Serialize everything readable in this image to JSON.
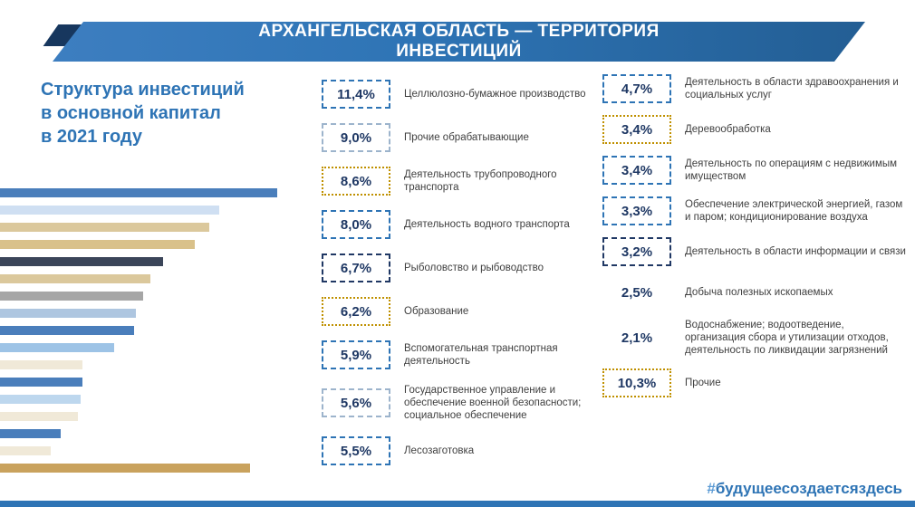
{
  "banner": {
    "line1": "АРХАНГЕЛЬСКАЯ ОБЛАСТЬ — ТЕРРИТОРИЯ",
    "line2": "ИНВЕСТИЦИЙ"
  },
  "heading": {
    "line1": "Структура инвестиций",
    "line2": "в основной капитал",
    "line3": "в 2021 году"
  },
  "hashtag": {
    "prefix": "#",
    "text": "будущеесоздаетсяздесь"
  },
  "colors": {
    "accent_blue": "#2e74b5",
    "banner_dark": "#17375e",
    "value_text": "#1f3864",
    "label_text": "#3f3f3f",
    "gold": "#bf9000",
    "footer_strip": "#2e74b5"
  },
  "left_column": [
    {
      "value": "11,4%",
      "label": "Целлюлозно-бумажное производство",
      "border": "blue"
    },
    {
      "value": "9,0%",
      "label": "Прочие обрабатывающие",
      "border": "gray"
    },
    {
      "value": "8,6%",
      "label": "Деятельность трубопроводного транспорта",
      "border": "gold"
    },
    {
      "value": "8,0%",
      "label": "Деятельность водного транспорта",
      "border": "blue"
    },
    {
      "value": "6,7%",
      "label": "Рыболовство и рыбоводство",
      "border": "dark"
    },
    {
      "value": "6,2%",
      "label": "Образование",
      "border": "gold"
    },
    {
      "value": "5,9%",
      "label": "Вспомогательная транспортная деятельность",
      "border": "blue"
    },
    {
      "value": "5,6%",
      "label": "Государственное управление и обеспечение военной безопасности; социальное обеспечение",
      "border": "gray"
    },
    {
      "value": "5,5%",
      "label": "Лесозаготовка",
      "border": "blue"
    }
  ],
  "right_column": [
    {
      "value": "4,7%",
      "label": "Деятельность в области здравоохранения и социальных услуг",
      "border": "blue"
    },
    {
      "value": "3,4%",
      "label": "Деревообработка",
      "border": "gold"
    },
    {
      "value": "3,4%",
      "label": "Деятельность по операциям с недвижимым имуществом",
      "border": "blue"
    },
    {
      "value": "3,3%",
      "label": "Обеспечение электрической энергией, газом и паром; кондиционирование воздуха",
      "border": "blue"
    },
    {
      "value": "3,2%",
      "label": "Деятельность в области информации и связи",
      "border": "dark"
    },
    {
      "value": "2,5%",
      "label": "Добыча полезных ископаемых",
      "border": "none"
    },
    {
      "value": "2,1%",
      "label": "Водоснабжение; водоотведение, организация сбора и утилизации отходов, деятельность по ликвидации загрязнений",
      "border": "none"
    },
    {
      "value": "10,3%",
      "label": "Прочие",
      "border": "gold"
    }
  ],
  "chart_data": {
    "type": "bar",
    "orientation": "horizontal",
    "title": "Структура инвестиций в основной капитал в 2021 году",
    "categories": [
      "Целлюлозно-бумажное производство",
      "Прочие обрабатывающие",
      "Деятельность трубопроводного транспорта",
      "Деятельность водного транспорта",
      "Рыболовство и рыбоводство",
      "Образование",
      "Вспомогательная транспортная деятельность",
      "Государственное управление и обеспечение военной безопасности; социальное обеспечение",
      "Лесозаготовка",
      "Деятельность в области здравоохранения и социальных услуг",
      "Деревообработка",
      "Деятельность по операциям с недвижимым имуществом",
      "Обеспечение электрической энергией, газом и паром; кондиционирование воздуха",
      "Деятельность в области информации и связи",
      "Добыча полезных ископаемых",
      "Водоснабжение; водоотведение, организация сбора и утилизации отходов, деятельность по ликвидации загрязнений",
      "Прочие"
    ],
    "values": [
      11.4,
      9.0,
      8.6,
      8.0,
      6.7,
      6.2,
      5.9,
      5.6,
      5.5,
      4.7,
      3.4,
      3.4,
      3.3,
      3.2,
      2.5,
      2.1,
      10.3
    ],
    "colors": [
      "#4a7ebb",
      "#cfdff2",
      "#dbc89c",
      "#d9c18a",
      "#3b4559",
      "#dbc89c",
      "#a6a6a6",
      "#aec6e0",
      "#4a7ebb",
      "#9dc3e6",
      "#f0e9d8",
      "#4a7ebb",
      "#bdd7ee",
      "#f0e9d8",
      "#4a7ebb",
      "#f0e9d8",
      "#c9a25d"
    ],
    "xlim": [
      0,
      11.4
    ],
    "unit": "%",
    "axes_shown": false,
    "legend": "none"
  }
}
